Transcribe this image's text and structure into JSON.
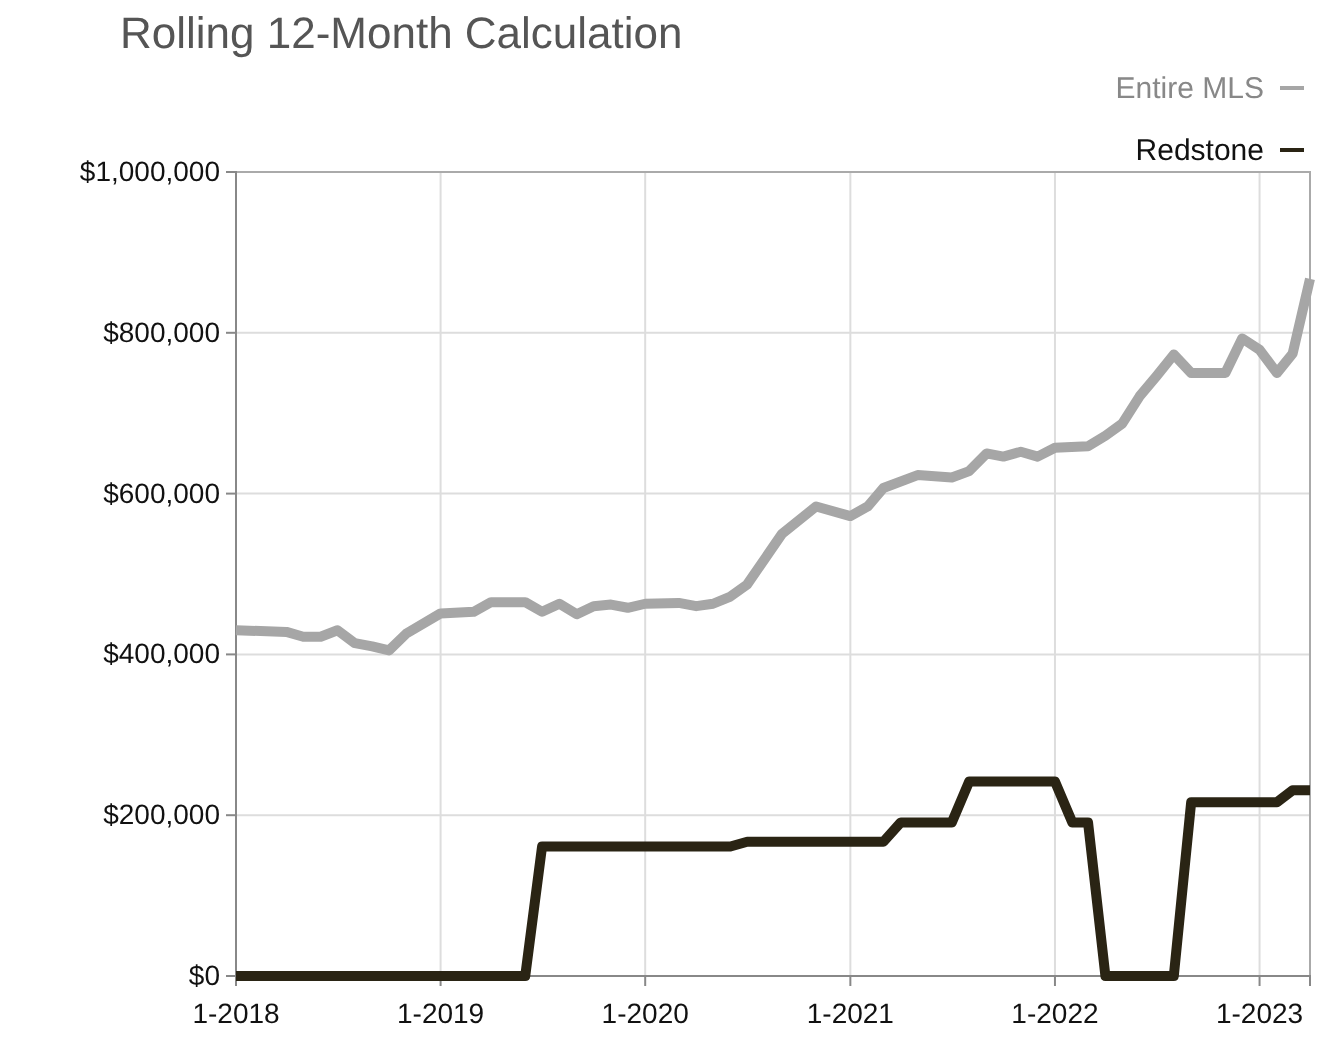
{
  "chart_data": {
    "type": "line",
    "title": "Rolling 12-Month Calculation",
    "xlim": [
      "2018-01",
      "2023-04"
    ],
    "xticks": [
      {
        "value": "2018-01",
        "label": "1-2018"
      },
      {
        "value": "2019-01",
        "label": "1-2019"
      },
      {
        "value": "2020-01",
        "label": "1-2020"
      },
      {
        "value": "2021-01",
        "label": "1-2021"
      },
      {
        "value": "2022-01",
        "label": "1-2022"
      },
      {
        "value": "2023-01",
        "label": "1-2023"
      }
    ],
    "ylim": [
      0,
      1000000
    ],
    "yticks": [
      {
        "value": 0,
        "label": "$0"
      },
      {
        "value": 200000,
        "label": "$200,000"
      },
      {
        "value": 400000,
        "label": "$400,000"
      },
      {
        "value": 600000,
        "label": "$600,000"
      },
      {
        "value": 800000,
        "label": "$800,000"
      },
      {
        "value": 1000000,
        "label": "$1,000,000"
      }
    ],
    "grid": true,
    "legend": "top right",
    "line_style": "solid",
    "series": [
      {
        "name": "Entire MLS",
        "color": "#a6a6a6",
        "x": [
          "2018-01",
          "2018-04",
          "2018-05",
          "2018-06",
          "2018-07",
          "2018-08",
          "2018-09",
          "2018-10",
          "2018-11",
          "2019-01",
          "2019-03",
          "2019-04",
          "2019-06",
          "2019-07",
          "2019-08",
          "2019-09",
          "2019-10",
          "2019-11",
          "2019-12",
          "2020-01",
          "2020-03",
          "2020-04",
          "2020-05",
          "2020-06",
          "2020-07",
          "2020-09",
          "2020-11",
          "2021-01",
          "2021-02",
          "2021-03",
          "2021-05",
          "2021-07",
          "2021-08",
          "2021-09",
          "2021-10",
          "2021-11",
          "2021-12",
          "2022-01",
          "2022-03",
          "2022-04",
          "2022-05",
          "2022-06",
          "2022-07",
          "2022-08",
          "2022-09",
          "2022-11",
          "2022-12",
          "2023-01",
          "2023-02",
          "2023-03",
          "2023-04"
        ],
        "values": [
          430000,
          428000,
          422000,
          422000,
          430000,
          414000,
          410000,
          405000,
          426000,
          451000,
          453000,
          465000,
          465000,
          453000,
          463000,
          450000,
          460000,
          462000,
          458000,
          463000,
          464000,
          460000,
          463000,
          472000,
          487000,
          550000,
          584000,
          572000,
          584000,
          607000,
          623000,
          620000,
          628000,
          650000,
          646000,
          652000,
          646000,
          657000,
          659000,
          672000,
          687000,
          721000,
          746000,
          773000,
          750000,
          750000,
          793000,
          779000,
          750000,
          774000,
          867000
        ]
      },
      {
        "name": "Redstone",
        "color": "#2a2414",
        "x": [
          "2018-01",
          "2019-06",
          "2019-07",
          "2020-06",
          "2020-07",
          "2021-03",
          "2021-04",
          "2021-07",
          "2021-08",
          "2022-01",
          "2022-02",
          "2022-03",
          "2022-04",
          "2022-08",
          "2022-09",
          "2023-02",
          "2023-03",
          "2023-04"
        ],
        "values": [
          0,
          0,
          161000,
          161000,
          167000,
          167000,
          191000,
          191000,
          242000,
          242000,
          191000,
          191000,
          0,
          0,
          216000,
          216000,
          231000,
          231000
        ]
      }
    ]
  }
}
